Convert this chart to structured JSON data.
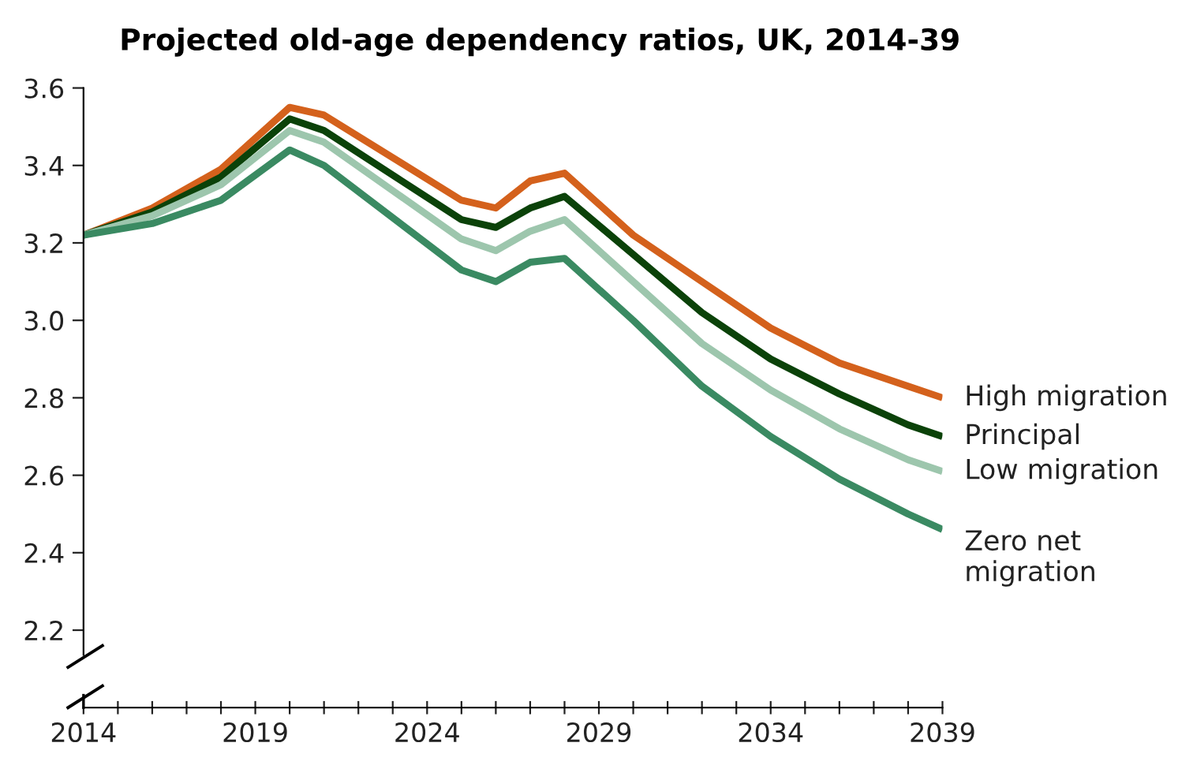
{
  "chart_data": {
    "type": "line",
    "title": "Projected old-age dependency ratios, UK, 2014-39",
    "x": [
      2014,
      2016,
      2018,
      2020,
      2021,
      2025,
      2026,
      2027,
      2028,
      2030,
      2032,
      2034,
      2036,
      2038,
      2039
    ],
    "series": [
      {
        "name": "High migration",
        "color": "#d4611c",
        "values": [
          3.22,
          3.29,
          3.39,
          3.55,
          3.53,
          3.31,
          3.29,
          3.36,
          3.38,
          3.22,
          3.1,
          2.98,
          2.89,
          2.83,
          2.8
        ]
      },
      {
        "name": "Principal",
        "color": "#0b4209",
        "values": [
          3.22,
          3.28,
          3.37,
          3.52,
          3.49,
          3.26,
          3.24,
          3.29,
          3.32,
          3.17,
          3.02,
          2.9,
          2.81,
          2.73,
          2.7
        ]
      },
      {
        "name": "Low migration",
        "color": "#9dc6ad",
        "values": [
          3.22,
          3.27,
          3.35,
          3.49,
          3.46,
          3.21,
          3.18,
          3.23,
          3.26,
          3.1,
          2.94,
          2.82,
          2.72,
          2.64,
          2.61
        ]
      },
      {
        "name": "Zero net\nmigration",
        "color": "#3a8a62",
        "values": [
          3.22,
          3.25,
          3.31,
          3.44,
          3.4,
          3.13,
          3.1,
          3.15,
          3.16,
          3.0,
          2.83,
          2.7,
          2.59,
          2.5,
          2.46
        ]
      }
    ],
    "xlim": [
      2014,
      2039
    ],
    "xticks": [
      2014,
      {
        "value": 2015,
        "label": null
      },
      {
        "value": 2016,
        "label": null
      },
      {
        "value": 2017,
        "label": null
      },
      {
        "value": 2018,
        "label": null
      },
      2019,
      {
        "value": 2020,
        "label": null
      },
      {
        "value": 2021,
        "label": null
      },
      {
        "value": 2022,
        "label": null
      },
      {
        "value": 2023,
        "label": null
      },
      2024,
      {
        "value": 2025,
        "label": null
      },
      {
        "value": 2026,
        "label": null
      },
      {
        "value": 2027,
        "label": null
      },
      {
        "value": 2028,
        "label": null
      },
      2029,
      {
        "value": 2030,
        "label": null
      },
      {
        "value": 2031,
        "label": null
      },
      {
        "value": 2032,
        "label": null
      },
      {
        "value": 2033,
        "label": null
      },
      2034,
      {
        "value": 2035,
        "label": null
      },
      {
        "value": 2036,
        "label": null
      },
      {
        "value": 2037,
        "label": null
      },
      {
        "value": 2038,
        "label": null
      },
      2039
    ],
    "ylim": [
      2.0,
      3.6
    ],
    "yticks": [
      {
        "value": 2.2,
        "label": "2.2"
      },
      {
        "value": 2.4,
        "label": "2.4"
      },
      {
        "value": 2.6,
        "label": "2.6"
      },
      {
        "value": 2.8,
        "label": "2.8"
      },
      {
        "value": 3.0,
        "label": "3.0"
      },
      {
        "value": 3.2,
        "label": "3.2"
      },
      {
        "value": 3.4,
        "label": "3.4"
      },
      {
        "value": 3.6,
        "label": "3.6"
      }
    ],
    "grid": false,
    "legend": false,
    "marker": "none",
    "line_style": "solid"
  }
}
